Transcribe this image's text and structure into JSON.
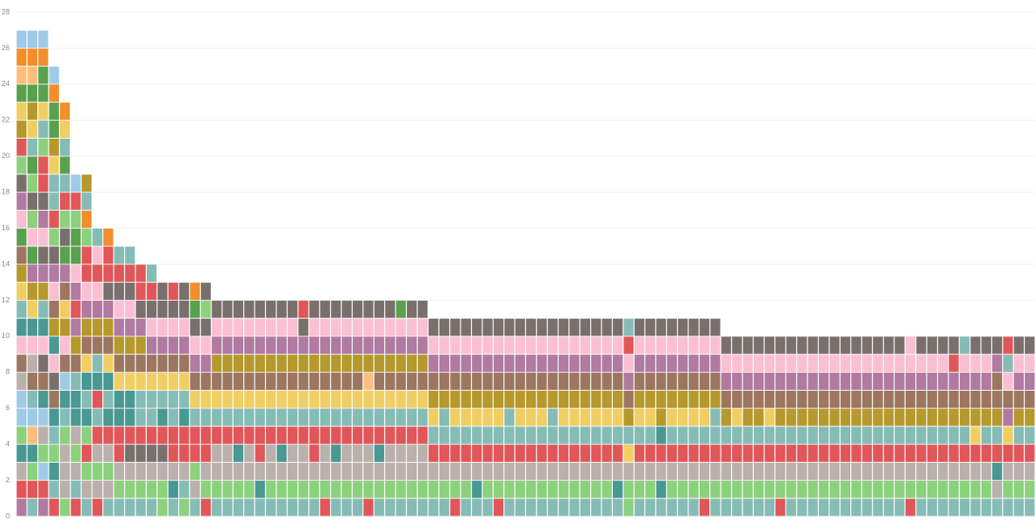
{
  "chart_data": {
    "type": "unit-stack",
    "palette": {
      "a": "#86bcb6",
      "b": "#e15759",
      "c": "#8cd17d",
      "d": "#bab0ac",
      "e": "#499894",
      "f": "#fabfd2",
      "g": "#b07aa1",
      "h": "#9d7660",
      "i": "#b6992d",
      "j": "#f1ce63",
      "k": "#79706e",
      "l": "#f28e2b",
      "m": "#a0cbe8",
      "n": "#ffbe7d",
      "o": "#59a14f"
    },
    "ylim": [
      0,
      28
    ],
    "yticks": [
      0,
      2,
      4,
      6,
      8,
      10,
      12,
      14,
      16,
      18,
      20,
      22,
      24,
      26,
      28
    ],
    "grid": true,
    "columns": [
      {
        "value": 27,
        "cells": "gbdecmmdhfeajihofgkcbijonlm"
      },
      {
        "value": 27,
        "cells": "abcenmahdfejigofckcoajionlm"
      },
      {
        "value": 27,
        "cells": "gbmcdmehkfeaigkfgkbbcajoolm"
      },
      {
        "value": 25,
        "cells": "baecaehkfeihfgkcbaajioolm"
      },
      {
        "value": 23,
        "cells": "cdddcaemhfijhgokcbaoajl"
      },
      {
        "value": 19,
        "cells": "badcdeeahigbgfoocbm"
      },
      {
        "value": 19,
        "cells": "adcbceaejhigfbbclai"
      },
      {
        "value": 16,
        "cells": "bdcdbabeahigfbfa"
      },
      {
        "value": 16,
        "cells": "adcdbeaejhigkbbl"
      },
      {
        "value": 15,
        "cells": "acdbbeejhigfkba"
      },
      {
        "value": 15,
        "cells": "acdkbeejhigfkba"
      },
      {
        "value": 14,
        "cells": "acdkbaajhigkbb"
      },
      {
        "value": 14,
        "cells": "acdkbaajhgfkba"
      },
      {
        "value": 13,
        "cells": "ccdkbeajhgfkk"
      },
      {
        "value": 13,
        "cells": "aedbbaajhgfkb"
      },
      {
        "value": 13,
        "cells": "cadbbeajhgfkk"
      },
      {
        "value": 13,
        "cells": "adcbbajhgfkol"
      },
      {
        "value": 13,
        "cells": "bcdbbajhgfkck"
      },
      {
        "value": 12,
        "cells": "acddbajhigfk"
      },
      {
        "value": 12,
        "cells": "acddbajhigfk"
      },
      {
        "value": 12,
        "cells": "acdebajhigfk"
      },
      {
        "value": 12,
        "cells": "acddbajhigfk"
      },
      {
        "value": 12,
        "cells": "aedbbajhigfk"
      },
      {
        "value": 12,
        "cells": "acddbajhigfk"
      },
      {
        "value": 12,
        "cells": "acdebajhigfk"
      },
      {
        "value": 12,
        "cells": "acddbajhigfk"
      },
      {
        "value": 12,
        "cells": "acddbajhigkb"
      },
      {
        "value": 12,
        "cells": "acdbbajhigfk"
      },
      {
        "value": 12,
        "cells": "bcddbajhigfk"
      },
      {
        "value": 12,
        "cells": "acdebajhigfk"
      },
      {
        "value": 12,
        "cells": "acddbajhigfk"
      },
      {
        "value": 12,
        "cells": "acddbajhigfk"
      },
      {
        "value": 12,
        "cells": "bcddbajnigfk"
      },
      {
        "value": 12,
        "cells": "acdebajhigfk"
      },
      {
        "value": 12,
        "cells": "acddbajhigfk"
      },
      {
        "value": 12,
        "cells": "acddbajhigfo"
      },
      {
        "value": 12,
        "cells": "acddbajhigfk"
      },
      {
        "value": 12,
        "cells": "acddbajhigfk"
      },
      {
        "value": 11,
        "cells": "acdbajihgfk"
      },
      {
        "value": 11,
        "cells": "acdbaaihgfk"
      },
      {
        "value": 11,
        "cells": "bcdbajihgfk"
      },
      {
        "value": 11,
        "cells": "acdbajihgfk"
      },
      {
        "value": 11,
        "cells": "aedbajihgfk"
      },
      {
        "value": 11,
        "cells": "acdbajihgfk"
      },
      {
        "value": 11,
        "cells": "bcdbajihgfk"
      },
      {
        "value": 11,
        "cells": "acdbaaihgfk"
      },
      {
        "value": 11,
        "cells": "acdbajihgfk"
      },
      {
        "value": 11,
        "cells": "acdbajihgfk"
      },
      {
        "value": 11,
        "cells": "acdbajihgfk"
      },
      {
        "value": 11,
        "cells": "acdbaaihgfk"
      },
      {
        "value": 11,
        "cells": "acdbajihgfk"
      },
      {
        "value": 11,
        "cells": "acdbajihgfk"
      },
      {
        "value": 11,
        "cells": "acdbajihgfk"
      },
      {
        "value": 11,
        "cells": "acdbajihgfk"
      },
      {
        "value": 11,
        "cells": "acdbajihgfk"
      },
      {
        "value": 11,
        "cells": "aedbajihgfk"
      },
      {
        "value": 11,
        "cells": "ccdjaihgfba"
      },
      {
        "value": 11,
        "cells": "acdbajihgfk"
      },
      {
        "value": 11,
        "cells": "acdbajihgfk"
      },
      {
        "value": 11,
        "cells": "aedbeiihgfk"
      },
      {
        "value": 11,
        "cells": "acdbajihgfk"
      },
      {
        "value": 11,
        "cells": "acdbajihgfk"
      },
      {
        "value": 11,
        "cells": "acdbajihgfk"
      },
      {
        "value": 11,
        "cells": "bcdbajihgfk"
      },
      {
        "value": 11,
        "cells": "acdbaaihgfk"
      },
      {
        "value": 10,
        "cells": "acdbaihgfk"
      },
      {
        "value": 10,
        "cells": "acdbajhgfk"
      },
      {
        "value": 10,
        "cells": "acdbaihgfk"
      },
      {
        "value": 10,
        "cells": "acdbaihgfk"
      },
      {
        "value": 10,
        "cells": "acdbajhgfk"
      },
      {
        "value": 10,
        "cells": "bcdbaihgfk"
      },
      {
        "value": 10,
        "cells": "acdbaihgfk"
      },
      {
        "value": 10,
        "cells": "acdbaihgfk"
      },
      {
        "value": 10,
        "cells": "acdbaihgfk"
      },
      {
        "value": 10,
        "cells": "acdbaihgfk"
      },
      {
        "value": 10,
        "cells": "acdbaihgfk"
      },
      {
        "value": 10,
        "cells": "acdbaihgfk"
      },
      {
        "value": 10,
        "cells": "acdbaihgfk"
      },
      {
        "value": 10,
        "cells": "acdbaihgfk"
      },
      {
        "value": 10,
        "cells": "acdbaihgfk"
      },
      {
        "value": 10,
        "cells": "acdbaihgfk"
      },
      {
        "value": 10,
        "cells": "acdbaihgfk"
      },
      {
        "value": 10,
        "cells": "bcdbaihgff"
      },
      {
        "value": 10,
        "cells": "acdbaihgfk"
      },
      {
        "value": 10,
        "cells": "acdbaihgfk"
      },
      {
        "value": 10,
        "cells": "acdbaihgfk"
      },
      {
        "value": 10,
        "cells": "acdbaihgbk"
      },
      {
        "value": 10,
        "cells": "acdbaihgfa"
      },
      {
        "value": 10,
        "cells": "acdbjihgfk"
      },
      {
        "value": 10,
        "cells": "acdbaihgfk"
      },
      {
        "value": 10,
        "cells": "adebaihhgk"
      },
      {
        "value": 10,
        "cells": "acdbjghfab"
      },
      {
        "value": 10,
        "cells": "acdbaihgfk"
      },
      {
        "value": 10,
        "cells": "acdbaihgfk"
      }
    ]
  }
}
